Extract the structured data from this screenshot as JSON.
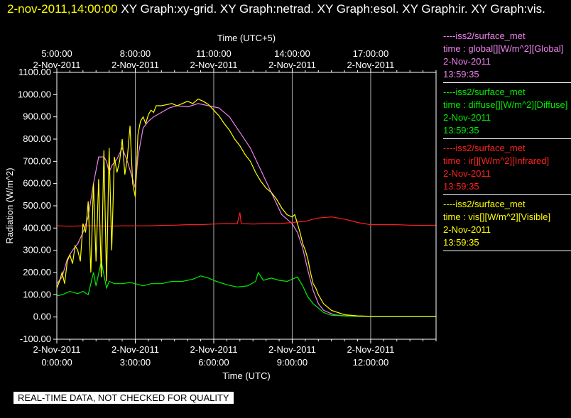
{
  "header": {
    "time": "2-nov-2011,14:00:00",
    "graph_titles": "XY Graph:xy-grid.  XY Graph:netrad.  XY Graph:esol.  XY Graph:ir.  XY Graph:vis."
  },
  "legend": [
    {
      "line1": "----iss2/surface_met",
      "line2": "time : global[][W/m^2][Global]",
      "line3": "2-Nov-2011",
      "line4": "13:59:35",
      "color": "#ee82ee"
    },
    {
      "line1": "----iss2/surface_met",
      "line2": "time : diffuse[][W/m^2][Diffuse]",
      "line3": "2-Nov-2011",
      "line4": "13:59:35",
      "color": "#00ee00"
    },
    {
      "line1": "----iss2/surface_met",
      "line2": "time : ir[][W/m^2][Infrared]",
      "line3": "2-Nov-2011",
      "line4": "13:59:35",
      "color": "#ff2020"
    },
    {
      "line1": "----iss2/surface_met",
      "line2": "time : vis[][W/m^2][Visible]",
      "line3": "2-Nov-2011",
      "line4": "13:59:35",
      "color": "#ffff00"
    }
  ],
  "disclaimer": "REAL-TIME DATA, NOT CHECKED FOR QUALITY",
  "chart_data": {
    "type": "line",
    "xlabel": "Time (UTC)",
    "x2label": "Time (UTC+5)",
    "ylabel": "Radiation (W/m^2)",
    "ylim": [
      -100,
      1100
    ],
    "xlim": [
      0,
      14.5
    ],
    "yticks": [
      -100,
      0,
      100,
      200,
      300,
      400,
      500,
      600,
      700,
      800,
      900,
      1000,
      1100
    ],
    "ytick_labels": [
      "-100.00",
      "0.00",
      "100.00",
      "200.00",
      "300.00",
      "400.00",
      "500.00",
      "600.00",
      "700.00",
      "800.00",
      "900.00",
      "1000.00",
      "1100.00"
    ],
    "xticks_bottom": [
      {
        "x": 0,
        "date": "2-Nov-2011",
        "time": "0:00:00"
      },
      {
        "x": 3,
        "date": "2-Nov-2011",
        "time": "3:00:00"
      },
      {
        "x": 6,
        "date": "2-Nov-2011",
        "time": "6:00:00"
      },
      {
        "x": 9,
        "date": "2-Nov-2011",
        "time": "9:00:00"
      },
      {
        "x": 12,
        "date": "2-Nov-2011",
        "time": "12:00:00"
      }
    ],
    "xticks_top": [
      {
        "x": 0,
        "date": "2-Nov-2011",
        "time": "5:00:00"
      },
      {
        "x": 3,
        "date": "2-Nov-2011",
        "time": "8:00:00"
      },
      {
        "x": 6,
        "date": "2-Nov-2011",
        "time": "11:00:00"
      },
      {
        "x": 9,
        "date": "2-Nov-2011",
        "time": "14:00:00"
      },
      {
        "x": 12,
        "date": "2-Nov-2011",
        "time": "17:00:00"
      }
    ],
    "grid": "vertical",
    "series": [
      {
        "name": "global",
        "color": "#ee82ee",
        "x": [
          0,
          0.2,
          0.4,
          0.6,
          0.8,
          1.0,
          1.2,
          1.4,
          1.6,
          1.8,
          1.9,
          2.0,
          2.1,
          2.3,
          2.5,
          2.7,
          2.9,
          3.0,
          3.1,
          3.3,
          3.5,
          3.7,
          4.0,
          4.3,
          4.6,
          5.0,
          5.4,
          5.8,
          6.2,
          6.6,
          7.0,
          7.4,
          7.8,
          8.2,
          8.6,
          8.8,
          9.0,
          9.2,
          9.4,
          9.6,
          9.8,
          10.0,
          10.2,
          10.6,
          11.0,
          11.5,
          12.0,
          12.5,
          13.0,
          13.5,
          14.0,
          14.5
        ],
        "y": [
          150,
          180,
          260,
          300,
          330,
          380,
          450,
          600,
          720,
          720,
          700,
          650,
          680,
          710,
          760,
          700,
          620,
          580,
          720,
          850,
          880,
          900,
          920,
          940,
          950,
          945,
          960,
          950,
          940,
          900,
          830,
          760,
          660,
          560,
          460,
          440,
          420,
          380,
          310,
          210,
          120,
          60,
          30,
          10,
          5,
          3,
          3,
          3,
          3,
          3,
          3,
          3
        ]
      },
      {
        "name": "diffuse",
        "color": "#00ee00",
        "x": [
          0,
          0.2,
          0.5,
          0.8,
          1.0,
          1.2,
          1.4,
          1.5,
          1.7,
          1.8,
          1.9,
          2.0,
          2.2,
          2.5,
          2.8,
          3.0,
          3.3,
          3.6,
          4.0,
          4.4,
          4.8,
          5.2,
          5.5,
          5.8,
          6.1,
          6.5,
          6.9,
          7.3,
          7.6,
          7.7,
          7.9,
          8.2,
          8.5,
          8.8,
          9.0,
          9.2,
          9.4,
          9.6,
          9.8,
          10.0,
          10.2,
          10.5,
          11.0,
          11.5,
          12.0,
          12.5,
          13.0,
          14.0,
          14.5
        ],
        "y": [
          95,
          100,
          115,
          105,
          115,
          100,
          200,
          140,
          250,
          190,
          130,
          160,
          150,
          150,
          155,
          150,
          140,
          150,
          150,
          160,
          160,
          170,
          185,
          175,
          160,
          145,
          135,
          140,
          160,
          200,
          165,
          175,
          165,
          160,
          170,
          180,
          140,
          90,
          60,
          40,
          20,
          8,
          5,
          3,
          3,
          3,
          3,
          3,
          3
        ]
      },
      {
        "name": "ir",
        "color": "#ff2020",
        "x": [
          0,
          0.5,
          1.0,
          1.5,
          2.0,
          2.5,
          3.0,
          3.5,
          4.0,
          4.5,
          5.0,
          5.5,
          6.0,
          6.5,
          6.9,
          7.0,
          7.05,
          7.5,
          8.0,
          8.5,
          9.0,
          9.5,
          9.8,
          10.0,
          10.5,
          11.0,
          11.5,
          12.0,
          12.5,
          13.0,
          13.5,
          14.0,
          14.5
        ],
        "y": [
          410,
          408,
          410,
          410,
          408,
          410,
          410,
          410,
          412,
          413,
          415,
          415,
          418,
          420,
          420,
          470,
          420,
          418,
          420,
          420,
          425,
          430,
          440,
          445,
          450,
          440,
          425,
          415,
          415,
          415,
          413,
          412,
          413
        ]
      },
      {
        "name": "vis",
        "color": "#ffff00",
        "x": [
          0,
          0.1,
          0.2,
          0.3,
          0.4,
          0.5,
          0.6,
          0.7,
          0.8,
          0.9,
          1.0,
          1.1,
          1.2,
          1.3,
          1.4,
          1.5,
          1.6,
          1.7,
          1.8,
          1.9,
          2.0,
          2.1,
          2.2,
          2.3,
          2.4,
          2.5,
          2.6,
          2.7,
          2.8,
          2.9,
          3.0,
          3.1,
          3.2,
          3.3,
          3.4,
          3.5,
          3.6,
          3.7,
          3.8,
          4.0,
          4.2,
          4.4,
          4.6,
          4.8,
          5.0,
          5.2,
          5.4,
          5.6,
          5.8,
          6.0,
          6.2,
          6.4,
          6.6,
          6.8,
          7.0,
          7.2,
          7.4,
          7.6,
          7.8,
          8.0,
          8.2,
          8.4,
          8.6,
          8.8,
          9.0,
          9.1,
          9.2,
          9.3,
          9.4,
          9.5,
          9.6,
          9.7,
          9.8,
          9.9,
          10.0,
          10.2,
          10.5,
          11.0,
          11.5,
          12.0,
          12.5,
          13.0,
          13.5,
          14.0,
          14.5
        ],
        "y": [
          130,
          160,
          200,
          150,
          250,
          280,
          240,
          320,
          300,
          250,
          420,
          380,
          520,
          200,
          600,
          250,
          620,
          180,
          750,
          160,
          760,
          300,
          720,
          650,
          700,
          800,
          640,
          720,
          860,
          600,
          540,
          820,
          880,
          900,
          870,
          910,
          930,
          920,
          950,
          950,
          955,
          960,
          950,
          960,
          970,
          960,
          980,
          970,
          955,
          930,
          905,
          870,
          840,
          800,
          770,
          730,
          700,
          650,
          610,
          580,
          560,
          530,
          490,
          460,
          450,
          460,
          420,
          380,
          330,
          300,
          260,
          200,
          150,
          130,
          100,
          60,
          30,
          10,
          5,
          3,
          3,
          3,
          3,
          3,
          3
        ]
      }
    ]
  }
}
